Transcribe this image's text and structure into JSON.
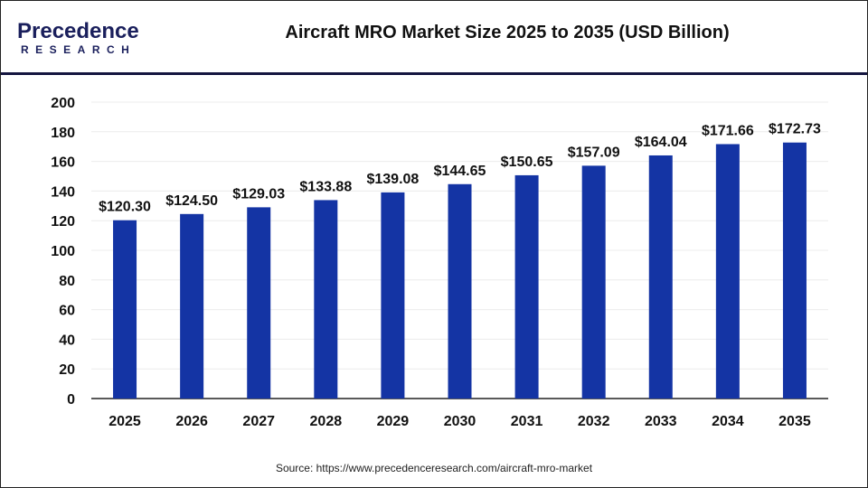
{
  "logo": {
    "line1": "Precedence",
    "line2": "RESEARCH"
  },
  "chart_data": {
    "type": "bar",
    "title": "Aircraft MRO Market Size 2025 to 2035 (USD Billion)",
    "categories": [
      "2025",
      "2026",
      "2027",
      "2028",
      "2029",
      "2030",
      "2031",
      "2032",
      "2033",
      "2034",
      "2035"
    ],
    "values": [
      120.3,
      124.5,
      129.03,
      133.88,
      139.08,
      144.65,
      150.65,
      157.09,
      164.04,
      171.66,
      172.73
    ],
    "data_labels": [
      "$120.30",
      "$124.50",
      "$129.03",
      "$133.88",
      "$139.08",
      "$144.65",
      "$150.65",
      "$157.09",
      "$164.04",
      "$171.66",
      "$172.73"
    ],
    "yticks": [
      0,
      20,
      40,
      60,
      80,
      100,
      120,
      140,
      160,
      180,
      200
    ],
    "ylim": [
      0,
      200
    ],
    "grid": true,
    "bar_color": "#1434a4",
    "xlabel": "",
    "ylabel": ""
  },
  "source": "Source: https://www.precedenceresearch.com/aircraft-mro-market"
}
